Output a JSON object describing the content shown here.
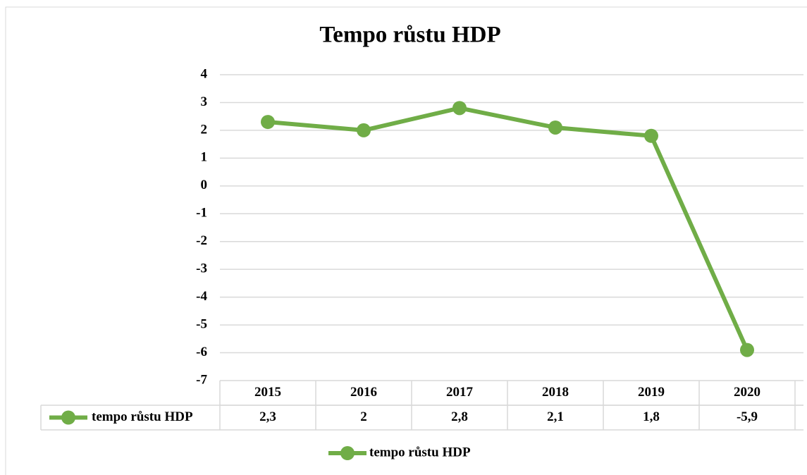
{
  "chart_data": {
    "type": "line",
    "title": "Tempo růstu HDP",
    "categories": [
      "2015",
      "2016",
      "2017",
      "2018",
      "2019",
      "2020"
    ],
    "series": [
      {
        "name": "tempo růstu HDP",
        "color": "#70ad47",
        "values": [
          2.3,
          2,
          2.8,
          2.1,
          1.8,
          -5.9
        ],
        "value_labels": [
          "2,3",
          "2",
          "2,8",
          "2,1",
          "1,8",
          "-5,9"
        ]
      }
    ],
    "ylim": [
      -7,
      4
    ],
    "yticks": [
      4,
      3,
      2,
      1,
      0,
      -1,
      -2,
      -3,
      -4,
      -5,
      -6,
      -7
    ],
    "grid": true,
    "legend": "bottom"
  }
}
